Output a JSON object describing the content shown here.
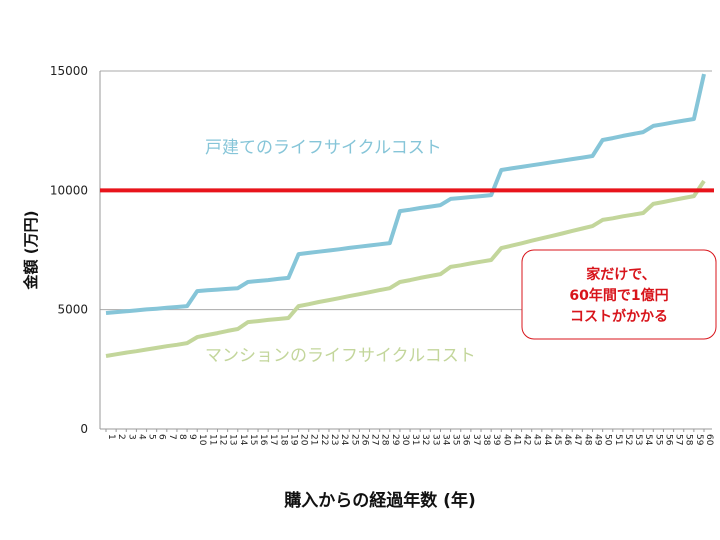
{
  "chart_data": {
    "type": "line",
    "title": "",
    "xlabel": "購入からの経過年数 (年)",
    "ylabel": "金額 (万円)",
    "ylim": [
      0,
      15000
    ],
    "yticks": [
      0,
      5000,
      10000,
      15000
    ],
    "ytick_labels": [
      "0",
      "5000",
      "10000",
      "15000"
    ],
    "x": [
      1,
      2,
      3,
      4,
      5,
      6,
      7,
      8,
      9,
      10,
      11,
      12,
      13,
      14,
      15,
      16,
      17,
      18,
      19,
      20,
      21,
      22,
      23,
      24,
      25,
      26,
      27,
      28,
      29,
      30,
      31,
      32,
      33,
      34,
      35,
      36,
      37,
      38,
      39,
      40,
      41,
      42,
      43,
      44,
      45,
      46,
      47,
      48,
      49,
      50,
      51,
      52,
      53,
      54,
      55,
      56,
      57,
      58,
      59,
      60
    ],
    "series": [
      {
        "name": "戸建てのライフサイクルコスト",
        "color": "#86c5d8",
        "values": [
          4860,
          4900,
          4930,
          4970,
          5010,
          5040,
          5080,
          5110,
          5150,
          5780,
          5810,
          5840,
          5870,
          5900,
          6160,
          6200,
          6240,
          6290,
          6330,
          7330,
          7380,
          7430,
          7480,
          7530,
          7590,
          7640,
          7690,
          7740,
          7790,
          9130,
          9190,
          9260,
          9320,
          9380,
          9640,
          9680,
          9720,
          9760,
          9800,
          10850,
          10920,
          10980,
          11050,
          11110,
          11180,
          11240,
          11310,
          11370,
          11440,
          12110,
          12190,
          12280,
          12360,
          12440,
          12700,
          12770,
          12850,
          12920,
          12990,
          14870
        ]
      },
      {
        "name": "マンションのライフサイクルコスト",
        "color": "#c3d69b",
        "values": [
          3060,
          3130,
          3200,
          3260,
          3330,
          3400,
          3470,
          3530,
          3600,
          3850,
          3940,
          4020,
          4110,
          4190,
          4480,
          4520,
          4570,
          4610,
          4650,
          5150,
          5230,
          5320,
          5400,
          5480,
          5570,
          5650,
          5730,
          5820,
          5900,
          6160,
          6240,
          6330,
          6410,
          6490,
          6790,
          6860,
          6940,
          7010,
          7080,
          7580,
          7680,
          7780,
          7890,
          7990,
          8090,
          8190,
          8300,
          8400,
          8500,
          8760,
          8830,
          8910,
          8980,
          9050,
          9430,
          9510,
          9600,
          9680,
          9760,
          10390
        ]
      }
    ],
    "reference_line": {
      "value": 10000,
      "color": "#e8141b"
    },
    "annotation": {
      "lines": [
        "家だけで、",
        "60年間で1億円",
        "コストがかかる"
      ],
      "color": "#d8141b"
    },
    "grid": true,
    "legend": "inline labels"
  }
}
